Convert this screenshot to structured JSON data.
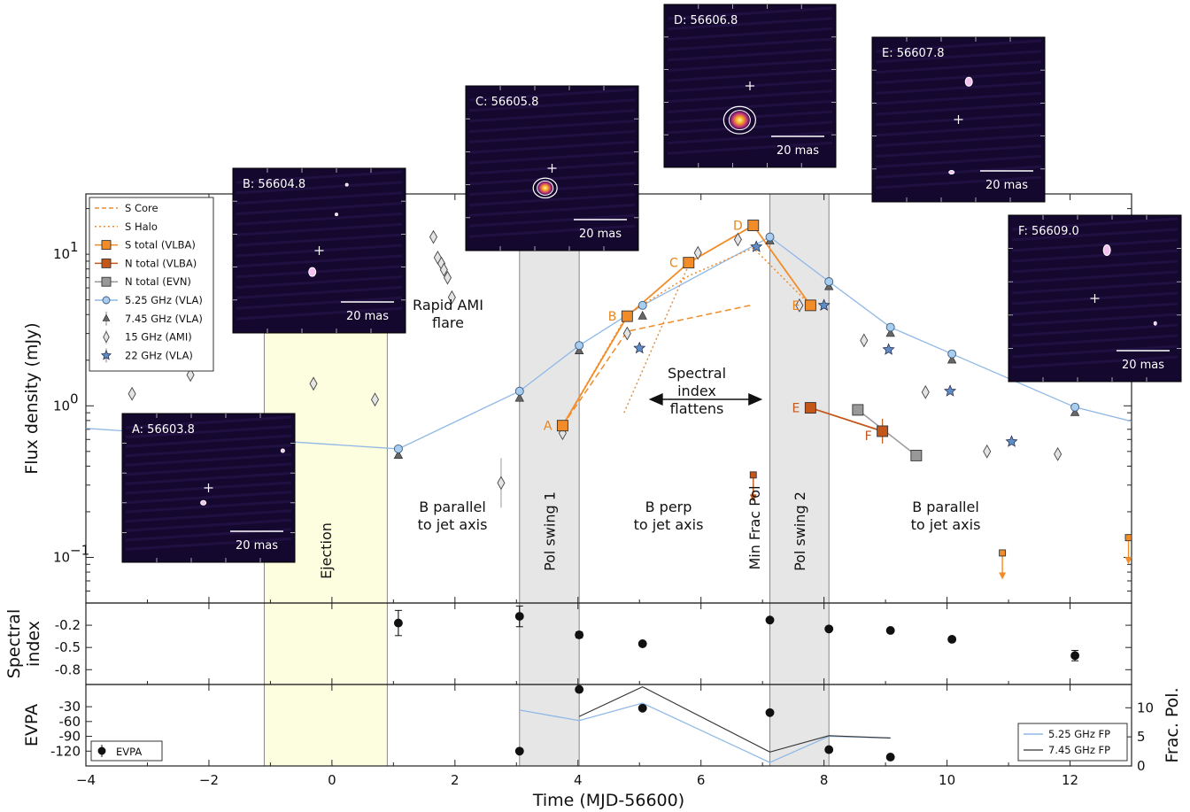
{
  "chart_data": {
    "type": "scatter",
    "xlabel": "Time (MJD-56600)",
    "xlim": [
      -4,
      13
    ],
    "x_ticks": [
      -4,
      -2,
      0,
      2,
      4,
      6,
      8,
      10,
      12
    ],
    "panels": {
      "flux": {
        "ylabel": "Flux density (mJy)",
        "yscale": "log",
        "ylim": [
          0.05,
          25
        ],
        "y_ticks": [
          {
            "value": 0.1,
            "base": "10",
            "exp": "−1"
          },
          {
            "value": 1,
            "base": "10",
            "exp": "0"
          },
          {
            "value": 10,
            "base": "10",
            "exp": "1"
          }
        ]
      },
      "spectral_index": {
        "ylabel_lines": [
          "Spectral",
          "index"
        ],
        "ylim": [
          -1.0,
          0.1
        ],
        "y_ticks": [
          {
            "value": -0.2,
            "label": "-0.2"
          },
          {
            "value": -0.5,
            "label": "-0.5"
          },
          {
            "value": -0.8,
            "label": "-0.8"
          }
        ]
      },
      "evpa": {
        "ylabel": "EVPA",
        "ylim": [
          -150,
          15
        ],
        "y_ticks": [
          {
            "value": -30,
            "label": "-30"
          },
          {
            "value": -60,
            "label": "-60"
          },
          {
            "value": -90,
            "label": "-90"
          },
          {
            "value": -120,
            "label": "-120"
          }
        ],
        "y2label": "Frac. Pol.",
        "y2lim": [
          0,
          14
        ],
        "y2_ticks": [
          {
            "value": 0,
            "label": "0"
          },
          {
            "value": 5,
            "label": "5"
          },
          {
            "value": 10,
            "label": "10"
          }
        ]
      }
    },
    "legend": [
      {
        "key": "s_core",
        "label": "S Core"
      },
      {
        "key": "s_halo",
        "label": "S Halo"
      },
      {
        "key": "s_total",
        "label": "S total (VLBA)"
      },
      {
        "key": "n_vlba",
        "label": "N total (VLBA)"
      },
      {
        "key": "n_evn",
        "label": "N total (EVN)"
      },
      {
        "key": "vla525",
        "label": "5.25 GHz (VLA)"
      },
      {
        "key": "vla745",
        "label": "7.45 GHz (VLA)"
      },
      {
        "key": "ami15",
        "label": "15 GHz (AMI)"
      },
      {
        "key": "vla22",
        "label": "22 GHz (VLA)"
      }
    ],
    "series": {
      "vla525": {
        "color": "#8fb8e6",
        "x": [
          -4.0,
          1.08,
          3.05,
          4.02,
          5.05,
          7.12,
          8.08,
          9.08,
          10.08,
          12.08,
          13.0
        ],
        "y": [
          0.71,
          0.52,
          1.25,
          2.5,
          4.6,
          13.0,
          6.6,
          3.3,
          2.2,
          0.98,
          0.79
        ]
      },
      "vla745": {
        "x": [
          1.08,
          3.05,
          4.02,
          5.05,
          7.12,
          8.08,
          9.08,
          10.08,
          12.08
        ],
        "y": [
          0.47,
          1.12,
          2.3,
          3.9,
          12.2,
          6.1,
          3.0,
          2.0,
          0.9
        ]
      },
      "ami15": {
        "x": [
          -3.25,
          -2.3,
          -0.3,
          0.7,
          1.65,
          1.72,
          1.78,
          1.82,
          1.88,
          1.95,
          2.75,
          3.75,
          4.8,
          5.95,
          6.6,
          7.6,
          8.65,
          9.65,
          10.65,
          11.8
        ],
        "y": [
          1.2,
          1.6,
          1.4,
          1.1,
          13.0,
          9.5,
          8.7,
          7.9,
          7.0,
          5.2,
          0.31,
          0.66,
          3.0,
          10.2,
          12.5,
          4.6,
          2.7,
          1.23,
          0.5,
          0.48
        ]
      },
      "vla22": {
        "x": [
          5.0,
          6.9,
          8.0,
          9.05,
          10.05,
          11.05
        ],
        "y": [
          2.4,
          11.2,
          4.6,
          2.35,
          1.25,
          0.58
        ]
      },
      "s_total": {
        "color": "#f28c28",
        "x": [
          3.75,
          4.8,
          5.8,
          6.85,
          7.78
        ],
        "y": [
          0.74,
          3.9,
          8.8,
          15.5,
          4.6
        ],
        "labels": [
          "A",
          "B",
          "C",
          "D",
          "E"
        ]
      },
      "n_vlba": {
        "color": "#c4561a",
        "x": [
          7.78,
          8.95
        ],
        "y": [
          0.97,
          0.68
        ],
        "labels": [
          "E",
          "F"
        ]
      },
      "n_evn": {
        "color": "#888888",
        "x": [
          8.55,
          9.5
        ],
        "y": [
          0.94,
          0.47
        ]
      },
      "s_core": {
        "color": "#f28c28",
        "x": [
          3.75,
          4.8,
          6.8
        ],
        "y": [
          0.74,
          3.1,
          4.6
        ]
      },
      "s_halo": {
        "color": "#f28c28",
        "x": [
          3.75,
          4.8,
          5.8,
          6.85,
          7.78
        ],
        "y": [
          0.74,
          4.0,
          7.2,
          11.0,
          4.6
        ],
        "extra_x": [
          4.75,
          5.8
        ],
        "extra_y": [
          0.9,
          8.5
        ]
      },
      "upper_limits": {
        "x": [
          6.85,
          10.9,
          12.95
        ],
        "y": [
          0.35,
          0.107,
          0.135
        ]
      }
    },
    "spectral_index": {
      "x": [
        1.08,
        3.05,
        4.02,
        5.05,
        7.12,
        8.08,
        9.08,
        10.08,
        12.08
      ],
      "y": [
        -0.17,
        -0.08,
        -0.33,
        -0.45,
        -0.13,
        -0.25,
        -0.27,
        -0.39,
        -0.61
      ],
      "err": [
        0.17,
        0.14,
        0.04,
        0.0,
        0.0,
        0.0,
        0.0,
        0.03,
        0.07
      ]
    },
    "evpa": {
      "x": [
        3.05,
        4.02,
        5.05,
        7.12,
        8.08,
        9.08
      ],
      "y": [
        -120,
        5,
        -33,
        -42,
        -117,
        -132
      ]
    },
    "frac_pol_525": {
      "x": [
        3.05,
        4.02,
        5.05,
        7.12,
        8.08,
        9.08
      ],
      "y": [
        9.6,
        7.8,
        10.8,
        0.6,
        5.1,
        4.8
      ]
    },
    "frac_pol_745": {
      "x": [
        4.02,
        5.05,
        7.12,
        8.08,
        9.08
      ],
      "y": [
        8.5,
        13.6,
        2.4,
        5.2,
        4.8
      ]
    },
    "evpa_legend": "EVPA",
    "fp_legend": [
      {
        "label": "5.25 GHz FP"
      },
      {
        "label": "7.45 GHz FP"
      }
    ],
    "bands": [
      {
        "x0": -1.1,
        "x1": 0.9,
        "color": "#fdfde0",
        "label": "Ejection"
      },
      {
        "x0": 3.05,
        "x1": 4.02,
        "color": "#e6e6e6",
        "label": "Pol swing 1"
      },
      {
        "x0": 7.12,
        "x1": 8.08,
        "color": "#e6e6e6",
        "label": "Pol swing 2"
      }
    ],
    "annotations": [
      {
        "lines": [
          "Rapid AMI",
          "flare"
        ]
      },
      {
        "lines": [
          "Spectral",
          "index",
          "flattens"
        ]
      },
      {
        "lines": [
          "B parallel",
          "to jet axis"
        ]
      },
      {
        "lines": [
          "B perp",
          "to jet axis"
        ]
      },
      {
        "lines": [
          "Min Frac Pol"
        ]
      },
      {
        "lines": [
          "B parallel",
          "to jet axis"
        ]
      }
    ],
    "insets": [
      {
        "title": "A: 56603.8",
        "scale": "20 mas"
      },
      {
        "title": "B: 56604.8",
        "scale": "20 mas"
      },
      {
        "title": "C: 56605.8",
        "scale": "20 mas"
      },
      {
        "title": "D: 56606.8",
        "scale": "20 mas"
      },
      {
        "title": "E: 56607.8",
        "scale": "20 mas"
      },
      {
        "title": "F: 56609.0",
        "scale": "20 mas"
      }
    ]
  }
}
